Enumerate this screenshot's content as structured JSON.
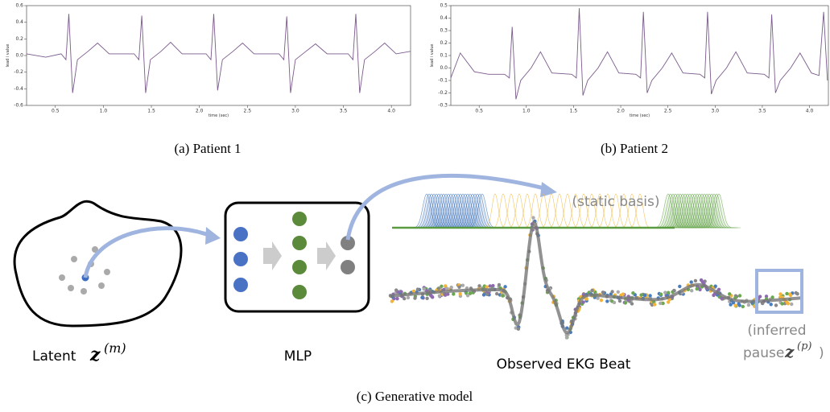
{
  "panels": [
    {
      "caption": "(a) Patient 1",
      "chart": {
        "type": "line",
        "color": "#7b5a8c",
        "xlabel": "time (sec)",
        "ylabel": "lead i value",
        "x": [
          0.2,
          0.4,
          0.56,
          0.61,
          0.64,
          0.68,
          0.73,
          0.84,
          0.94,
          1.06,
          1.32,
          1.37,
          1.4,
          1.44,
          1.49,
          1.6,
          1.7,
          1.82,
          2.07,
          2.12,
          2.15,
          2.19,
          2.24,
          2.35,
          2.45,
          2.57,
          2.83,
          2.88,
          2.91,
          2.95,
          3.0,
          3.11,
          3.21,
          3.33,
          3.55,
          3.6,
          3.63,
          3.67,
          3.72,
          3.83,
          3.93,
          4.05,
          4.2
        ],
        "values": [
          0.02,
          -0.02,
          0.02,
          -0.05,
          0.5,
          -0.45,
          -0.05,
          0.05,
          0.15,
          0.02,
          0.02,
          -0.05,
          0.48,
          -0.45,
          -0.05,
          0.05,
          0.16,
          0.02,
          0.02,
          -0.05,
          0.5,
          -0.42,
          -0.05,
          0.05,
          0.15,
          0.02,
          0.02,
          -0.05,
          0.47,
          -0.45,
          -0.05,
          0.05,
          0.14,
          0.02,
          0.02,
          -0.05,
          0.5,
          -0.45,
          -0.05,
          0.05,
          0.15,
          0.02,
          0.05
        ],
        "xlim": [
          0.2,
          4.2
        ],
        "ylim": [
          -0.6,
          0.6
        ],
        "xticks": [
          0.5,
          {
            "value": 1,
            "label": "1.0"
          },
          1.5,
          {
            "value": 2,
            "label": "2.0"
          },
          2.5,
          {
            "value": 3,
            "label": "3.0"
          },
          3.5,
          {
            "value": 4,
            "label": "4.0"
          }
        ],
        "yticks": [
          -0.6,
          -0.4,
          -0.2,
          {
            "value": 0,
            "label": "0.0"
          },
          0.2,
          0.4,
          0.6
        ]
      }
    },
    {
      "caption": "(b) Patient 2",
      "chart": {
        "type": "line",
        "color": "#7b5a8c",
        "xlabel": "time (sec)",
        "ylabel": "lead i value",
        "x": [
          0.2,
          0.3,
          0.45,
          0.6,
          0.77,
          0.82,
          0.85,
          0.89,
          0.94,
          1.05,
          1.15,
          1.27,
          1.48,
          1.53,
          1.56,
          1.6,
          1.65,
          1.76,
          1.86,
          1.98,
          2.16,
          2.21,
          2.24,
          2.28,
          2.33,
          2.44,
          2.54,
          2.66,
          2.84,
          2.89,
          2.92,
          2.96,
          3.01,
          3.12,
          3.22,
          3.34,
          3.52,
          3.57,
          3.6,
          3.64,
          3.69,
          3.8,
          3.9,
          4.02,
          4.1,
          4.15,
          4.19
        ],
        "values": [
          -0.08,
          0.12,
          -0.03,
          -0.05,
          -0.05,
          -0.08,
          0.33,
          -0.25,
          -0.1,
          0.0,
          0.13,
          -0.04,
          -0.05,
          -0.08,
          0.48,
          -0.22,
          -0.1,
          0.0,
          0.13,
          -0.04,
          -0.05,
          -0.08,
          0.45,
          -0.2,
          -0.1,
          0.0,
          0.12,
          -0.04,
          -0.05,
          -0.08,
          0.45,
          -0.21,
          -0.1,
          0.0,
          0.13,
          -0.04,
          -0.05,
          -0.08,
          0.43,
          -0.2,
          -0.1,
          0.0,
          0.12,
          -0.04,
          -0.06,
          0.45,
          -0.1
        ],
        "xlim": [
          0.2,
          4.2
        ],
        "ylim": [
          -0.3,
          0.5
        ],
        "xticks": [
          0.5,
          {
            "value": 1,
            "label": "1.0"
          },
          1.5,
          {
            "value": 2,
            "label": "2.0"
          },
          2.5,
          {
            "value": 3,
            "label": "3.0"
          },
          3.5,
          {
            "value": 4,
            "label": "4.0"
          }
        ],
        "yticks": [
          -0.3,
          -0.2,
          -0.1,
          {
            "value": 0,
            "label": "0.0"
          },
          0.1,
          0.2,
          0.3,
          0.4,
          0.5
        ]
      }
    }
  ],
  "diagram": {
    "static_basis": "(static basis)",
    "latent": "Latent",
    "latent_var": "z",
    "latent_sup": "(m)",
    "mlp": "MLP",
    "observed": "Observed EKG Beat",
    "inferred_1": "(inferred",
    "inferred_2": "pause",
    "pause_var": "z",
    "pause_sup": "(p)",
    "pause_close": ")",
    "caption": "(c) Generative model"
  }
}
